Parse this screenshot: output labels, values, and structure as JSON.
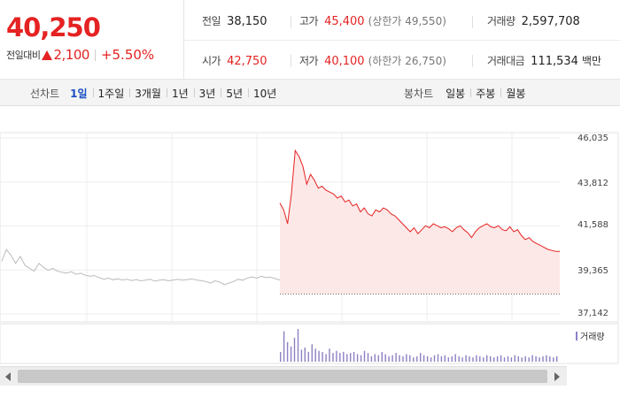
{
  "summary": {
    "current_price": "40,250",
    "change_label": "전일대비",
    "change_value": "2,100",
    "change_pct": "+5.50%",
    "stats": {
      "prev_close_label": "전일",
      "prev_close": "38,150",
      "high_label": "고가",
      "high": "45,400",
      "upper_limit": "(상한가 49,550)",
      "volume_label": "거래량",
      "volume": "2,597,708",
      "open_label": "시가",
      "open": "42,750",
      "low_label": "저가",
      "low": "40,100",
      "lower_limit": "(하한가 26,750)",
      "trade_value_label": "거래대금",
      "trade_value": "111,534",
      "trade_value_unit": "백만"
    }
  },
  "toolbar": {
    "line_chart_label": "선차트",
    "periods": [
      "1일",
      "1주일",
      "3개월",
      "1년",
      "3년",
      "5년",
      "10년"
    ],
    "active_period": "1일",
    "candle_chart_label": "봉차트",
    "candle_periods": [
      "일봉",
      "주봉",
      "월봉"
    ]
  },
  "chart_data": {
    "type": "line",
    "y_ticks": [
      "46,035",
      "43,812",
      "41,588",
      "39,365",
      "37,142"
    ],
    "ylim": [
      37142,
      46035
    ],
    "previous_close": 38150,
    "volume_legend": "거래량",
    "colors": {
      "price": "#e52222",
      "fill": "#fde8e8",
      "prev_day": "#bbbbbb",
      "volume": "#8f7fc3"
    },
    "prev_day_series": [
      39800,
      40400,
      40100,
      39700,
      40050,
      39600,
      39450,
      39300,
      39700,
      39500,
      39350,
      39450,
      39300,
      39250,
      39200,
      39280,
      39150,
      39200,
      39100,
      39050,
      39080,
      38980,
      38900,
      38950,
      38870,
      38920,
      38860,
      38900,
      38830,
      38880,
      38820,
      38850,
      38900,
      38800,
      38850,
      38870,
      38820,
      38860,
      38900,
      38850,
      38880,
      38920,
      38860,
      38830,
      38780,
      38700,
      38820,
      38760,
      38620,
      38700,
      38780,
      38900,
      38850,
      38960,
      39020,
      38950,
      39050,
      38980,
      39000,
      38930,
      38860
    ],
    "today_series": [
      42750,
      42400,
      41700,
      43200,
      45400,
      45100,
      44600,
      43700,
      44200,
      43900,
      43500,
      43600,
      43400,
      43300,
      43200,
      43000,
      43100,
      42800,
      42900,
      42600,
      42700,
      42300,
      42500,
      42200,
      42100,
      42400,
      42300,
      42500,
      42400,
      42200,
      42100,
      41900,
      41700,
      41500,
      41300,
      41500,
      41200,
      41400,
      41600,
      41500,
      41700,
      41600,
      41500,
      41550,
      41450,
      41300,
      41500,
      41600,
      41400,
      41250,
      41000,
      41300,
      41500,
      41600,
      41700,
      41550,
      41500,
      41600,
      41400,
      41350,
      41550,
      41300,
      41400,
      41100,
      40900,
      41000,
      40800,
      40700,
      40600,
      40500,
      40400,
      40350,
      40300,
      40300
    ],
    "volume": [
      9,
      28,
      18,
      14,
      22,
      30,
      11,
      13,
      9,
      16,
      12,
      10,
      9,
      7,
      12,
      8,
      10,
      8,
      9,
      7,
      8,
      9,
      7,
      6,
      10,
      8,
      5,
      7,
      6,
      9,
      7,
      5,
      6,
      8,
      6,
      5,
      7,
      6,
      4,
      5,
      8,
      6,
      5,
      4,
      6,
      7,
      5,
      6,
      4,
      5,
      7,
      5,
      4,
      6,
      5,
      4,
      6,
      5,
      4,
      6,
      5,
      4,
      5,
      6,
      4,
      5,
      4,
      6,
      5,
      4,
      5,
      4,
      6,
      5,
      4,
      5,
      6,
      5,
      4,
      5
    ]
  }
}
